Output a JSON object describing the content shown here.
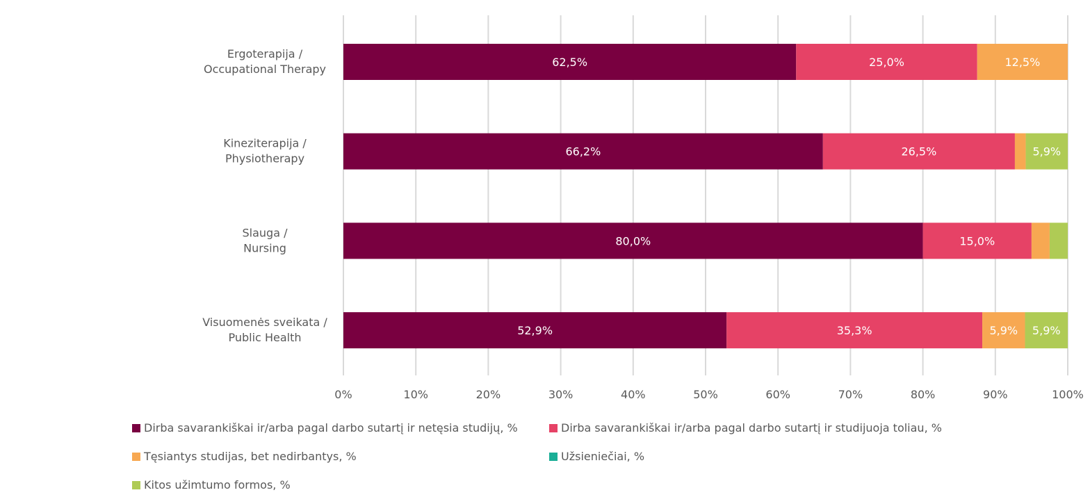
{
  "chart_data": {
    "type": "bar",
    "orientation": "horizontal",
    "stacked": "percent",
    "title": "",
    "xlabel": "",
    "ylabel": "",
    "xlim": [
      0,
      100
    ],
    "x_ticks": [
      "0%",
      "10%",
      "20%",
      "30%",
      "40%",
      "50%",
      "60%",
      "70%",
      "80%",
      "90%",
      "100%"
    ],
    "grid": true,
    "legend_position": "bottom",
    "categories": [
      [
        "Ergoterapija /",
        "Occupational Therapy"
      ],
      [
        "Kineziterapija /",
        "Physiotherapy"
      ],
      [
        "Slauga /",
        "Nursing"
      ],
      [
        "Visuomenės sveikata /",
        "Public Health"
      ]
    ],
    "series": [
      {
        "name": "Dirba savarankiškai ir/arba pagal darbo sutartį ir netęsia studijų, %",
        "color": "#790040",
        "values": [
          62.5,
          66.2,
          80.0,
          52.9
        ],
        "labels": [
          "62,5%",
          "66,2%",
          "80,0%",
          "52,9%"
        ]
      },
      {
        "name": "Dirba savarankiškai ir/arba pagal darbo sutartį ir studijuoja toliau, %",
        "color": "#E64266",
        "values": [
          25.0,
          26.5,
          15.0,
          35.3
        ],
        "labels": [
          "25,0%",
          "26,5%",
          "15,0%",
          "35,3%"
        ]
      },
      {
        "name": "Tęsiantys studijas, bet nedirbantys, %",
        "color": "#F7A852",
        "values": [
          12.5,
          1.5,
          2.5,
          5.9
        ],
        "labels": [
          "12,5%",
          "",
          "",
          "5,9%"
        ]
      },
      {
        "name": "Užsieniečiai, %",
        "color": "#1AAE96",
        "values": [
          0,
          0,
          0,
          0
        ],
        "labels": [
          "",
          "",
          "",
          ""
        ]
      },
      {
        "name": "Kitos užimtumo formos, %",
        "color": "#AFCB55",
        "values": [
          0,
          5.9,
          2.5,
          5.9
        ],
        "labels": [
          "",
          "5,9%",
          "",
          "5,9%"
        ]
      }
    ]
  }
}
